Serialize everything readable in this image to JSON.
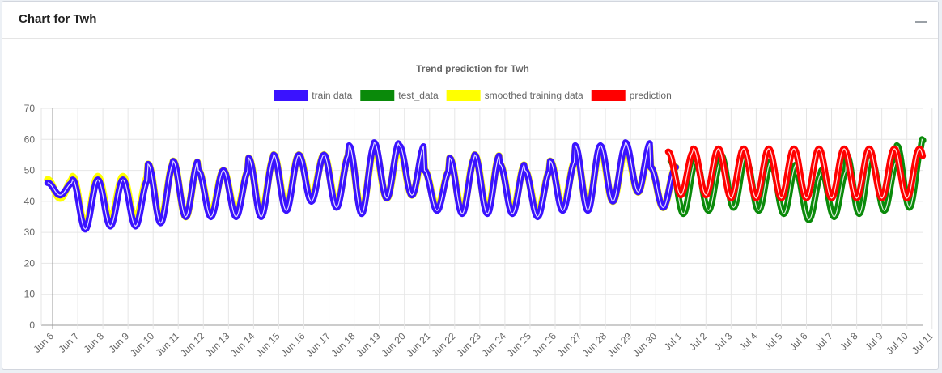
{
  "panel": {
    "title": "Chart for Twh",
    "collapse_icon": "minus-icon"
  },
  "chart_data": {
    "type": "line",
    "title": "Trend prediction for Twh",
    "xlabel": "",
    "ylabel": "",
    "ylim": [
      0,
      70
    ],
    "yticks": [
      0,
      10,
      20,
      30,
      40,
      50,
      60,
      70
    ],
    "xticks": [
      "Jun 6",
      "Jun 7",
      "Jun 8",
      "Jun 9",
      "Jun 10",
      "Jun 11",
      "Jun 12",
      "Jun 13",
      "Jun 14",
      "Jun 15",
      "Jun 16",
      "Jun 17",
      "Jun 18",
      "Jun 19",
      "Jun 20",
      "Jun 21",
      "Jun 22",
      "Jun 23",
      "Jun 24",
      "Jun 25",
      "Jun 26",
      "Jun 27",
      "Jun 28",
      "Jun 29",
      "Jun 30",
      "Jul 1",
      "Jul 2",
      "Jul 3",
      "Jul 4",
      "Jul 5",
      "Jul 6",
      "Jul 7",
      "Jul 8",
      "Jul 9",
      "Jul 10",
      "Jul 11"
    ],
    "x_start_day": 0,
    "grid": true,
    "legend_position": "top",
    "series": [
      {
        "name": "train data",
        "color": "#3a12ff",
        "x_start": -0.2,
        "daily_min": [
          42,
          31,
          32,
          32,
          33,
          35,
          35,
          35,
          35,
          37,
          40,
          38,
          36,
          41,
          42,
          37,
          36,
          36,
          36,
          35,
          37,
          37,
          40,
          43,
          38
        ],
        "daily_max": [
          46,
          47,
          47,
          47,
          52,
          53,
          50,
          50,
          54,
          55,
          55,
          55,
          58,
          59,
          58,
          50,
          54,
          55,
          52,
          50,
          53,
          58,
          58,
          59,
          51
        ]
      },
      {
        "name": "test_data",
        "color": "#0a8a0a",
        "x_start": 24.6,
        "daily_min": [
          36,
          37,
          38,
          37,
          36,
          34,
          35,
          36,
          37,
          38,
          42,
          42
        ],
        "daily_max": [
          53,
          53,
          55,
          53,
          52,
          49,
          50,
          55,
          53,
          58,
          60,
          53
        ]
      },
      {
        "name": "smoothed training data",
        "color": "#ffff00",
        "x_start": -0.2,
        "daily_min": [
          41,
          32,
          34,
          34,
          34,
          35,
          36,
          36,
          36,
          38,
          41,
          39,
          37,
          41,
          42,
          38,
          37,
          37,
          37,
          36,
          38,
          38,
          40,
          43,
          38
        ],
        "daily_max": [
          47,
          48,
          48,
          48,
          52,
          53,
          50,
          50,
          54,
          55,
          55,
          55,
          57,
          58,
          57,
          50,
          54,
          55,
          52,
          50,
          53,
          57,
          57,
          58,
          51
        ]
      },
      {
        "name": "prediction",
        "color": "#ff0000",
        "x_start": 24.5,
        "daily_min": [
          42,
          42,
          41,
          41,
          41,
          41,
          41,
          41,
          41,
          41,
          41,
          41
        ],
        "daily_max": [
          56,
          57,
          57,
          57,
          57,
          57,
          57,
          57,
          57,
          57,
          57,
          57
        ]
      }
    ]
  }
}
